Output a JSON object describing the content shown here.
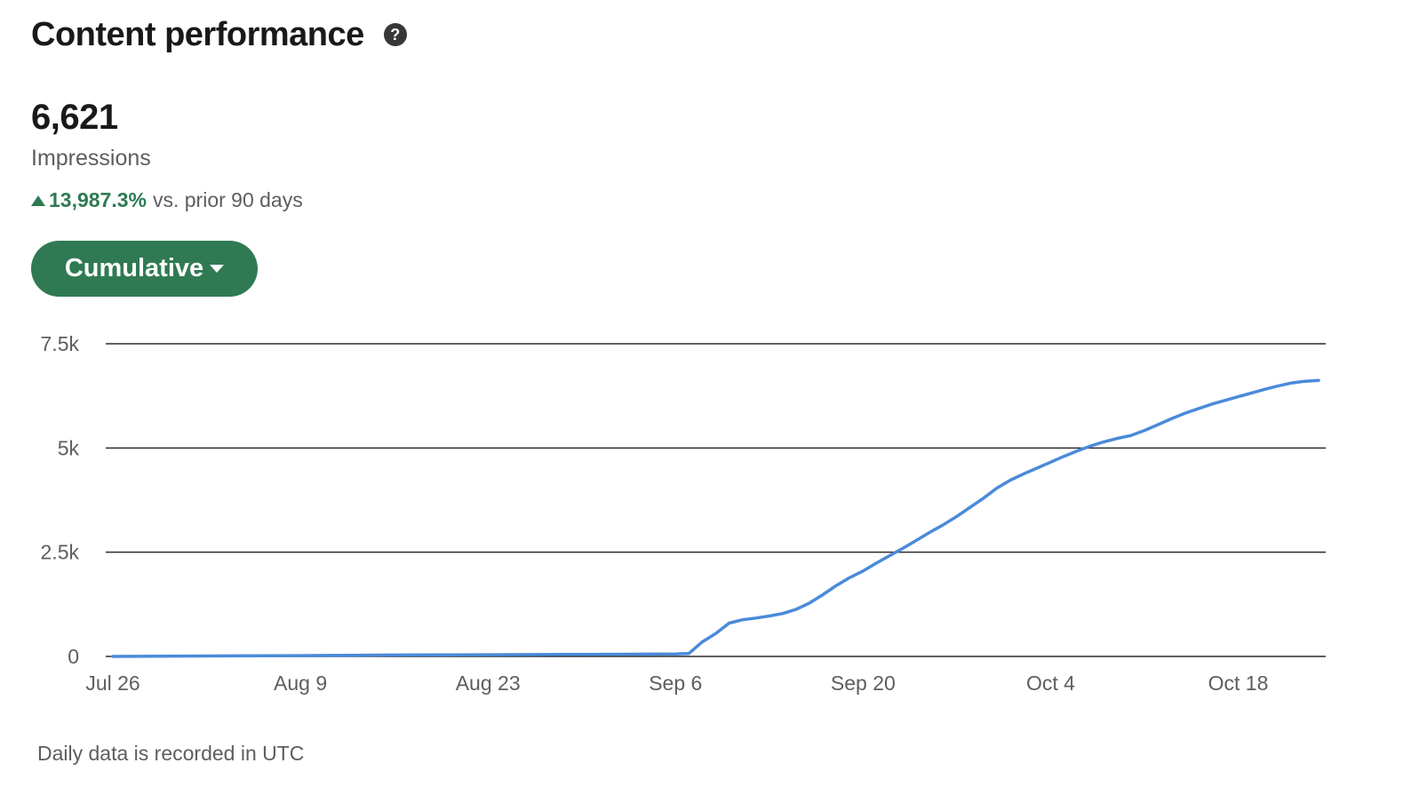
{
  "header": {
    "title": "Content performance",
    "help_icon": "question-circle-icon"
  },
  "metric": {
    "value": "6,621",
    "label": "Impressions",
    "change_percent": "13,987.3%",
    "change_direction": "up",
    "change_suffix": "vs. prior 90 days"
  },
  "view_dropdown": {
    "selected": "Cumulative"
  },
  "footnote": "Daily data is recorded in UTC",
  "colors": {
    "accent_green": "#2f7a53",
    "line_blue": "#4a8ad9"
  },
  "chart_data": {
    "type": "line",
    "title": "",
    "xlabel": "",
    "ylabel": "",
    "x_ticks": [
      "Jul 26",
      "Aug 9",
      "Aug 23",
      "Sep 6",
      "Sep 20",
      "Oct 4",
      "Oct 18"
    ],
    "y_ticks": [
      "0",
      "2.5k",
      "5k",
      "7.5k"
    ],
    "ylim": [
      0,
      7500
    ],
    "xlim": [
      "2024-07-26",
      "2024-10-24"
    ],
    "grid": "horizontal",
    "series": [
      {
        "x": [
          "2024-07-26",
          "2024-08-02",
          "2024-08-09",
          "2024-08-16",
          "2024-08-23",
          "2024-08-30",
          "2024-09-06",
          "2024-09-07",
          "2024-09-08",
          "2024-09-09",
          "2024-09-10",
          "2024-09-11",
          "2024-09-12",
          "2024-09-13",
          "2024-09-14",
          "2024-09-15",
          "2024-09-16",
          "2024-09-17",
          "2024-09-18",
          "2024-09-19",
          "2024-09-20",
          "2024-09-21",
          "2024-09-22",
          "2024-09-23",
          "2024-09-24",
          "2024-09-25",
          "2024-09-26",
          "2024-09-27",
          "2024-09-28",
          "2024-09-29",
          "2024-09-30",
          "2024-10-01",
          "2024-10-02",
          "2024-10-03",
          "2024-10-04",
          "2024-10-05",
          "2024-10-06",
          "2024-10-07",
          "2024-10-08",
          "2024-10-09",
          "2024-10-10",
          "2024-10-11",
          "2024-10-12",
          "2024-10-13",
          "2024-10-14",
          "2024-10-15",
          "2024-10-16",
          "2024-10-17",
          "2024-10-18",
          "2024-10-19",
          "2024-10-20",
          "2024-10-21",
          "2024-10-22",
          "2024-10-23",
          "2024-10-24"
        ],
        "values": [
          0,
          10,
          20,
          35,
          40,
          50,
          60,
          70,
          350,
          550,
          800,
          880,
          920,
          970,
          1030,
          1130,
          1280,
          1480,
          1700,
          1890,
          2050,
          2240,
          2420,
          2600,
          2790,
          2980,
          3160,
          3360,
          3580,
          3800,
          4040,
          4230,
          4380,
          4520,
          4660,
          4800,
          4930,
          5050,
          5150,
          5230,
          5300,
          5420,
          5560,
          5700,
          5830,
          5940,
          6050,
          6140,
          6230,
          6320,
          6410,
          6490,
          6560,
          6600,
          6621
        ]
      }
    ]
  }
}
